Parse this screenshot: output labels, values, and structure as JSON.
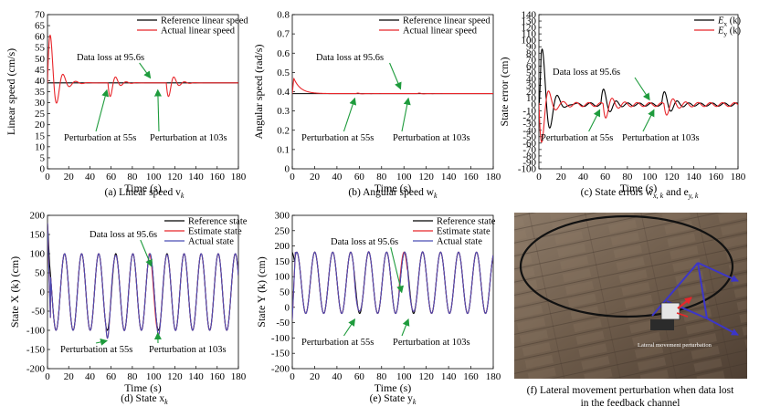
{
  "chart_data": [
    {
      "id": "a",
      "type": "line",
      "caption": "(a) Linear speed v",
      "caption_sub": "k",
      "xlabel": "Time (s)",
      "ylabel": "Linear speed (cm/s)",
      "xlim": [
        0,
        180
      ],
      "ylim": [
        0,
        70
      ],
      "xticks": [
        0,
        20,
        40,
        60,
        80,
        100,
        120,
        140,
        160,
        180
      ],
      "yticks": [
        0,
        5,
        10,
        15,
        20,
        25,
        30,
        35,
        40,
        45,
        50,
        55,
        60,
        65,
        70
      ],
      "legend_position": "top-right",
      "series": [
        {
          "name": "Reference linear speed",
          "color": "#000000",
          "kind": "const",
          "value": 39
        },
        {
          "name": "Actual linear speed",
          "color": "#e8262b",
          "kind": "speed"
        }
      ],
      "annotations": [
        {
          "text": "Data loss at 95.6s",
          "target_x": 97,
          "target_y": 40
        },
        {
          "text": "Perturbation at 55s",
          "target_x": 56,
          "target_y": 37
        },
        {
          "text": "Perturbation at 103s",
          "target_x": 104,
          "target_y": 37
        }
      ]
    },
    {
      "id": "b",
      "type": "line",
      "caption": "(b) Angular speed w",
      "caption_sub": "k",
      "xlabel": "Time (s)",
      "ylabel": "Angular speed (rad/s)",
      "xlim": [
        0,
        180
      ],
      "ylim": [
        0,
        0.8
      ],
      "xticks": [
        0,
        20,
        40,
        60,
        80,
        100,
        120,
        140,
        160,
        180
      ],
      "yticks": [
        "0",
        "0.1",
        "0.2",
        "0.3",
        "0.4",
        "0.5",
        "0.6",
        "0.7",
        "0.8"
      ],
      "legend_position": "top-right",
      "series": [
        {
          "name": "Reference linear speed",
          "color": "#000000",
          "kind": "const",
          "value": 0.39
        },
        {
          "name": "Actual linear speed",
          "color": "#e8262b",
          "kind": "ang"
        }
      ],
      "annotations": [
        {
          "text": "Data loss at 95.6s",
          "target_x": 97,
          "target_y": 0.4
        },
        {
          "text": "Perturbation at 55s",
          "target_x": 56,
          "target_y": 0.38
        },
        {
          "text": "Perturbation at 103s",
          "target_x": 104,
          "target_y": 0.38
        }
      ]
    },
    {
      "id": "c",
      "type": "line",
      "caption": "(c) State errors w",
      "caption_sub": "x, k",
      "caption_mid": " and e",
      "caption_sub2": "y, k",
      "xlabel": "Time (s)",
      "ylabel": "State error (cm)",
      "xlim": [
        0,
        180
      ],
      "ylim": [
        -100,
        140
      ],
      "xticks": [
        0,
        20,
        40,
        60,
        80,
        100,
        120,
        140,
        160,
        180
      ],
      "yticks": [
        -100,
        -90,
        -80,
        -70,
        -60,
        -50,
        -40,
        -30,
        -20,
        -10,
        0,
        10,
        20,
        30,
        40,
        50,
        60,
        70,
        80,
        90,
        100,
        110,
        120,
        130,
        140
      ],
      "legend_position": "top-right",
      "series": [
        {
          "name": "E",
          "sub": "x",
          "suffix": " (k)",
          "color": "#000000",
          "kind": "errx"
        },
        {
          "name": "E",
          "sub": "y",
          "suffix": " (k)",
          "color": "#e8262b",
          "kind": "erry"
        }
      ],
      "annotations": [
        {
          "text": "Data loss at 95.6s",
          "target_x": 100,
          "target_y": 3
        },
        {
          "text": "Perturbation at 55s",
          "target_x": 55,
          "target_y": -4
        },
        {
          "text": "Perturbation at 103s",
          "target_x": 104,
          "target_y": -4
        }
      ]
    },
    {
      "id": "d",
      "type": "line",
      "caption": "(d) State x",
      "caption_sub": "k",
      "xlabel": "Time (s)",
      "ylabel": "State X (k) (cm)",
      "xlim": [
        0,
        180
      ],
      "ylim": [
        -200,
        200
      ],
      "xticks": [
        0,
        20,
        40,
        60,
        80,
        100,
        120,
        140,
        160,
        180
      ],
      "yticks": [
        -200,
        -150,
        -100,
        -50,
        0,
        50,
        100,
        150,
        200
      ],
      "legend_position": "top-right",
      "series": [
        {
          "name": "Reference state",
          "color": "#000000",
          "kind": "sx_ref"
        },
        {
          "name": "Estimate state",
          "color": "#e8262b",
          "kind": "sx_est"
        },
        {
          "name": "Actual state",
          "color": "#4b4db5",
          "kind": "sx_act"
        }
      ],
      "annotations": [
        {
          "text": "Data loss at 95.6s",
          "target_x": 98,
          "target_y": 60
        },
        {
          "text": "Perturbation at 55s",
          "target_x": 56,
          "target_y": -120
        },
        {
          "text": "Perturbation at 103s",
          "target_x": 104,
          "target_y": -100
        }
      ]
    },
    {
      "id": "e",
      "type": "line",
      "caption": "(e) State y",
      "caption_sub": "k",
      "xlabel": "Time (s)",
      "ylabel": "State Y (k) (cm)",
      "xlim": [
        0,
        180
      ],
      "ylim": [
        -200,
        300
      ],
      "xticks": [
        0,
        20,
        40,
        60,
        80,
        100,
        120,
        140,
        160,
        180
      ],
      "yticks": [
        -200,
        -150,
        -100,
        -50,
        0,
        50,
        100,
        150,
        200,
        250,
        300
      ],
      "legend_position": "top-right",
      "series": [
        {
          "name": "Reference state",
          "color": "#000000",
          "kind": "sy_ref"
        },
        {
          "name": "Estimate state",
          "color": "#e8262b",
          "kind": "sy_est"
        },
        {
          "name": "Actual state",
          "color": "#4b4db5",
          "kind": "sy_act"
        }
      ],
      "annotations": [
        {
          "text": "Data loss at 95.6s",
          "target_x": 98,
          "target_y": 40
        },
        {
          "text": "Perturbation at 55s",
          "target_x": 56,
          "target_y": -30
        },
        {
          "text": "Perturbation at 103s",
          "target_x": 104,
          "target_y": -30
        }
      ]
    }
  ],
  "photo": {
    "caption_line1": "(f) Lateral movement perturbation when data lost",
    "caption_line2": "in the feedback channel",
    "overlay_label": "Lateral movement perturbation"
  }
}
